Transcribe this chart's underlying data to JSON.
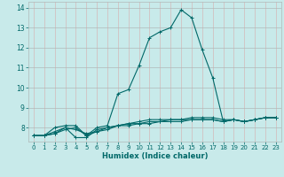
{
  "xlabel": "Humidex (Indice chaleur)",
  "ylabel": "",
  "bg_color": "#c8eaea",
  "grid_color_h": "#b0b8b8",
  "grid_color_v": "#d4b8b8",
  "line_color": "#006868",
  "xlim": [
    -0.5,
    23.5
  ],
  "ylim": [
    7.3,
    14.3
  ],
  "yticks": [
    8,
    9,
    10,
    11,
    12,
    13,
    14
  ],
  "xticks": [
    0,
    1,
    2,
    3,
    4,
    5,
    6,
    7,
    8,
    9,
    10,
    11,
    12,
    13,
    14,
    15,
    16,
    17,
    18,
    19,
    20,
    21,
    22,
    23
  ],
  "series": [
    {
      "x": [
        0,
        1,
        2,
        3,
        4,
        5,
        6,
        7,
        8,
        9,
        10,
        11,
        12,
        13,
        14,
        15,
        16,
        17,
        18,
        19,
        20,
        21,
        22,
        23
      ],
      "y": [
        7.6,
        7.6,
        8.0,
        8.1,
        8.1,
        7.6,
        8.0,
        8.1,
        9.7,
        9.9,
        11.1,
        12.5,
        12.8,
        13.0,
        13.9,
        13.5,
        11.9,
        10.5,
        8.3,
        8.4,
        8.3,
        8.4,
        8.5,
        8.5
      ]
    },
    {
      "x": [
        0,
        1,
        2,
        3,
        4,
        5,
        6,
        7,
        8,
        9,
        10,
        11,
        12,
        13,
        14,
        15,
        16,
        17,
        18,
        19,
        20,
        21,
        22,
        23
      ],
      "y": [
        7.6,
        7.6,
        7.7,
        8.0,
        7.5,
        7.5,
        7.9,
        8.0,
        8.1,
        8.2,
        8.2,
        8.2,
        8.3,
        8.3,
        8.3,
        8.4,
        8.4,
        8.4,
        8.3,
        8.4,
        8.3,
        8.4,
        8.5,
        8.5
      ]
    },
    {
      "x": [
        0,
        1,
        2,
        3,
        4,
        5,
        6,
        7,
        8,
        9,
        10,
        11,
        12,
        13,
        14,
        15,
        16,
        17,
        18,
        19,
        20,
        21,
        22,
        23
      ],
      "y": [
        7.6,
        7.6,
        7.8,
        8.0,
        7.9,
        7.7,
        7.8,
        7.9,
        8.1,
        8.2,
        8.3,
        8.4,
        8.4,
        8.4,
        8.4,
        8.5,
        8.5,
        8.5,
        8.4,
        8.4,
        8.3,
        8.4,
        8.5,
        8.5
      ]
    },
    {
      "x": [
        0,
        1,
        2,
        3,
        4,
        5,
        6,
        7,
        8,
        9,
        10,
        11,
        12,
        13,
        14,
        15,
        16,
        17,
        18,
        19,
        20,
        21,
        22,
        23
      ],
      "y": [
        7.6,
        7.6,
        7.7,
        7.9,
        8.0,
        7.6,
        7.8,
        8.0,
        8.1,
        8.1,
        8.2,
        8.3,
        8.3,
        8.4,
        8.4,
        8.4,
        8.4,
        8.4,
        8.3,
        8.4,
        8.3,
        8.4,
        8.5,
        8.5
      ]
    }
  ]
}
